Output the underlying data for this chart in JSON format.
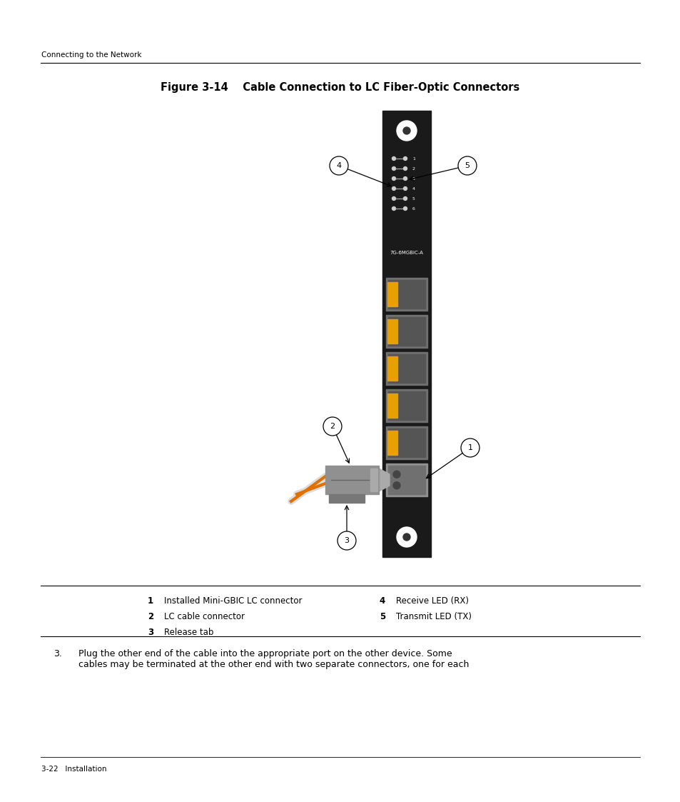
{
  "bg_color": "#ffffff",
  "page_header": "Connecting to the Network",
  "figure_title": "Figure 3-14    Cable Connection to LC Fiber-Optic Connectors",
  "footer_text": "3-22   Installation",
  "legend_items": [
    {
      "num": "1",
      "text": "Installed Mini-GBIC LC connector"
    },
    {
      "num": "2",
      "text": "LC cable connector"
    },
    {
      "num": "3",
      "text": "Release tab"
    },
    {
      "num": "4",
      "text": "Receive LED (RX)"
    },
    {
      "num": "5",
      "text": "Transmit LED (TX)"
    }
  ],
  "panel_label": "7G-6MGBIC-A",
  "panel_color": "#1a1a1a",
  "port_gray": "#707070",
  "port_dark": "#555555",
  "yellow": "#E8A000",
  "cable_gray": "#909090",
  "cable_light": "#b0b0b0",
  "fiber_orange": "#E07000",
  "white": "#ffffff"
}
